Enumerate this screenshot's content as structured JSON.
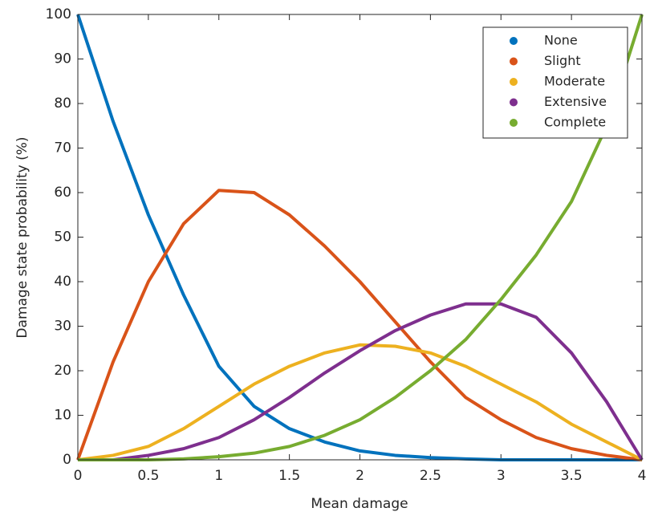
{
  "chart_data": {
    "type": "line",
    "x_label": "Mean damage",
    "y_label": "Damage state probability (%)",
    "x": [
      0,
      0.25,
      0.5,
      0.75,
      1,
      1.25,
      1.5,
      1.75,
      2,
      2.25,
      2.5,
      2.75,
      3,
      3.25,
      3.5,
      3.75,
      4
    ],
    "series": [
      {
        "name": "None",
        "color": "#0072bd",
        "values": [
          100,
          76,
          55,
          37,
          21,
          12,
          7,
          4,
          2,
          1,
          0.5,
          0.2,
          0,
          0,
          0,
          0,
          0
        ]
      },
      {
        "name": "Slight",
        "color": "#d95319",
        "values": [
          0,
          22,
          40,
          53,
          60.5,
          60,
          55,
          48,
          40,
          31,
          22,
          14,
          9,
          5,
          2.5,
          1,
          0
        ]
      },
      {
        "name": "Moderate",
        "color": "#edb120",
        "values": [
          0,
          1,
          3,
          7,
          12,
          17,
          21,
          24,
          25.8,
          25.5,
          24,
          21,
          17,
          13,
          8,
          4,
          0
        ]
      },
      {
        "name": "Extensive",
        "color": "#7e2f8e",
        "values": [
          0,
          0,
          1,
          2.5,
          5,
          9,
          14,
          19.5,
          24.5,
          29,
          32.5,
          35,
          35,
          32,
          24,
          13,
          0
        ]
      },
      {
        "name": "Complete",
        "color": "#77ac30",
        "values": [
          0,
          0,
          0,
          0.2,
          0.7,
          1.5,
          3,
          5.5,
          9,
          14,
          20,
          27,
          36,
          46,
          58,
          75,
          100
        ]
      }
    ],
    "xlim": [
      0,
      4
    ],
    "ylim": [
      0,
      100
    ],
    "xticks": [
      0,
      0.5,
      1,
      1.5,
      2,
      2.5,
      3,
      3.5,
      4
    ],
    "yticks": [
      0,
      10,
      20,
      30,
      40,
      50,
      60,
      70,
      80,
      90,
      100
    ],
    "legend": "upper right"
  }
}
